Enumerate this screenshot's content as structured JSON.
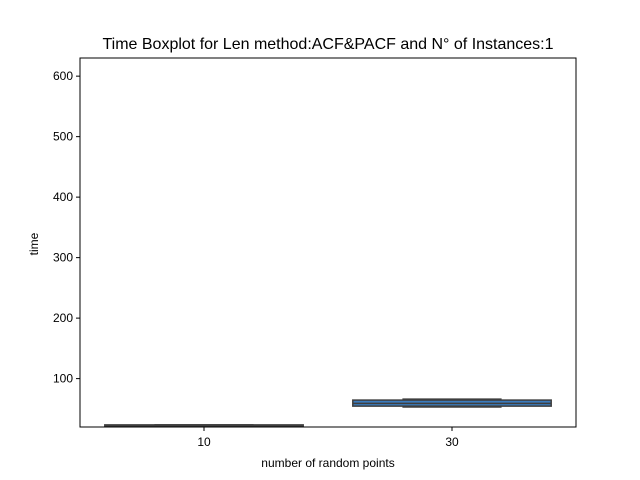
{
  "chart_data": {
    "type": "boxplot",
    "title": "Time Boxplot for Len method:ACF&PACF and N° of Instances:1",
    "xlabel": "number of random points",
    "ylabel": "time",
    "categories": [
      "10",
      "30"
    ],
    "ylim": [
      20,
      630
    ],
    "yticks": [
      100,
      200,
      300,
      400,
      500,
      600
    ],
    "boxes": [
      {
        "category": "10",
        "min": 21.5,
        "q1": 21.5,
        "median": 22.5,
        "q3": 23.5,
        "max": 23.5,
        "color": "#3a7bbd"
      },
      {
        "category": "30",
        "min": 53,
        "q1": 54.5,
        "median": 59,
        "q3": 64.5,
        "max": 66,
        "color": "#3a7bbd"
      }
    ],
    "grid": false,
    "edge_color": "#3f3f3f"
  }
}
